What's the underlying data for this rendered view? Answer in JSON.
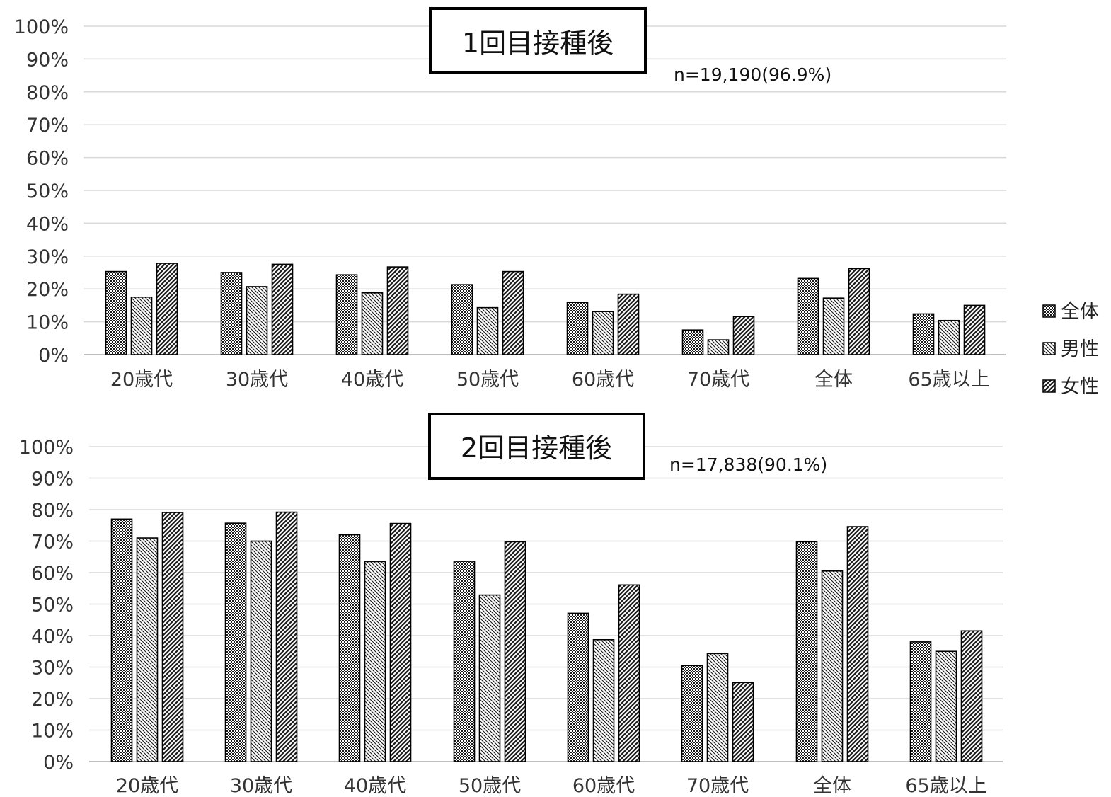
{
  "chart_data": [
    {
      "type": "bar",
      "title": "1回目接種後",
      "annotation": "n=19,190(96.9%)",
      "categories": [
        "20歳代",
        "30歳代",
        "40歳代",
        "50歳代",
        "60歳代",
        "70歳代",
        "全体",
        "65歳以上"
      ],
      "series": [
        {
          "name": "全体",
          "values": [
            25.3,
            25.0,
            24.3,
            21.3,
            15.9,
            7.5,
            23.2,
            12.4
          ]
        },
        {
          "name": "男性",
          "values": [
            17.5,
            20.7,
            18.8,
            14.3,
            13.1,
            4.5,
            17.2,
            10.4
          ]
        },
        {
          "name": "女性",
          "values": [
            27.8,
            27.5,
            26.7,
            25.3,
            18.4,
            11.6,
            26.2,
            15.0
          ]
        }
      ],
      "ylim": [
        0,
        100
      ],
      "yticks": [
        "0%",
        "10%",
        "20%",
        "30%",
        "40%",
        "50%",
        "60%",
        "70%",
        "80%",
        "90%",
        "100%"
      ],
      "grid": true
    },
    {
      "type": "bar",
      "title": "2回目接種後",
      "annotation": "n=17,838(90.1%)",
      "categories": [
        "20歳代",
        "30歳代",
        "40歳代",
        "50歳代",
        "60歳代",
        "70歳代",
        "全体",
        "65歳以上"
      ],
      "series": [
        {
          "name": "全体",
          "values": [
            77.0,
            75.7,
            72.0,
            63.6,
            47.1,
            30.5,
            69.8,
            38.0
          ]
        },
        {
          "name": "男性",
          "values": [
            71.0,
            70.0,
            63.5,
            52.9,
            38.7,
            34.3,
            60.5,
            35.0
          ]
        },
        {
          "name": "女性",
          "values": [
            79.1,
            79.2,
            75.6,
            69.8,
            56.1,
            25.1,
            74.6,
            41.5
          ]
        }
      ],
      "ylim": [
        0,
        100
      ],
      "yticks": [
        "0%",
        "10%",
        "20%",
        "30%",
        "40%",
        "50%",
        "60%",
        "70%",
        "80%",
        "90%",
        "100%"
      ],
      "grid": true
    }
  ],
  "legend": {
    "position": "right",
    "items": [
      "全体",
      "男性",
      "女性"
    ]
  }
}
